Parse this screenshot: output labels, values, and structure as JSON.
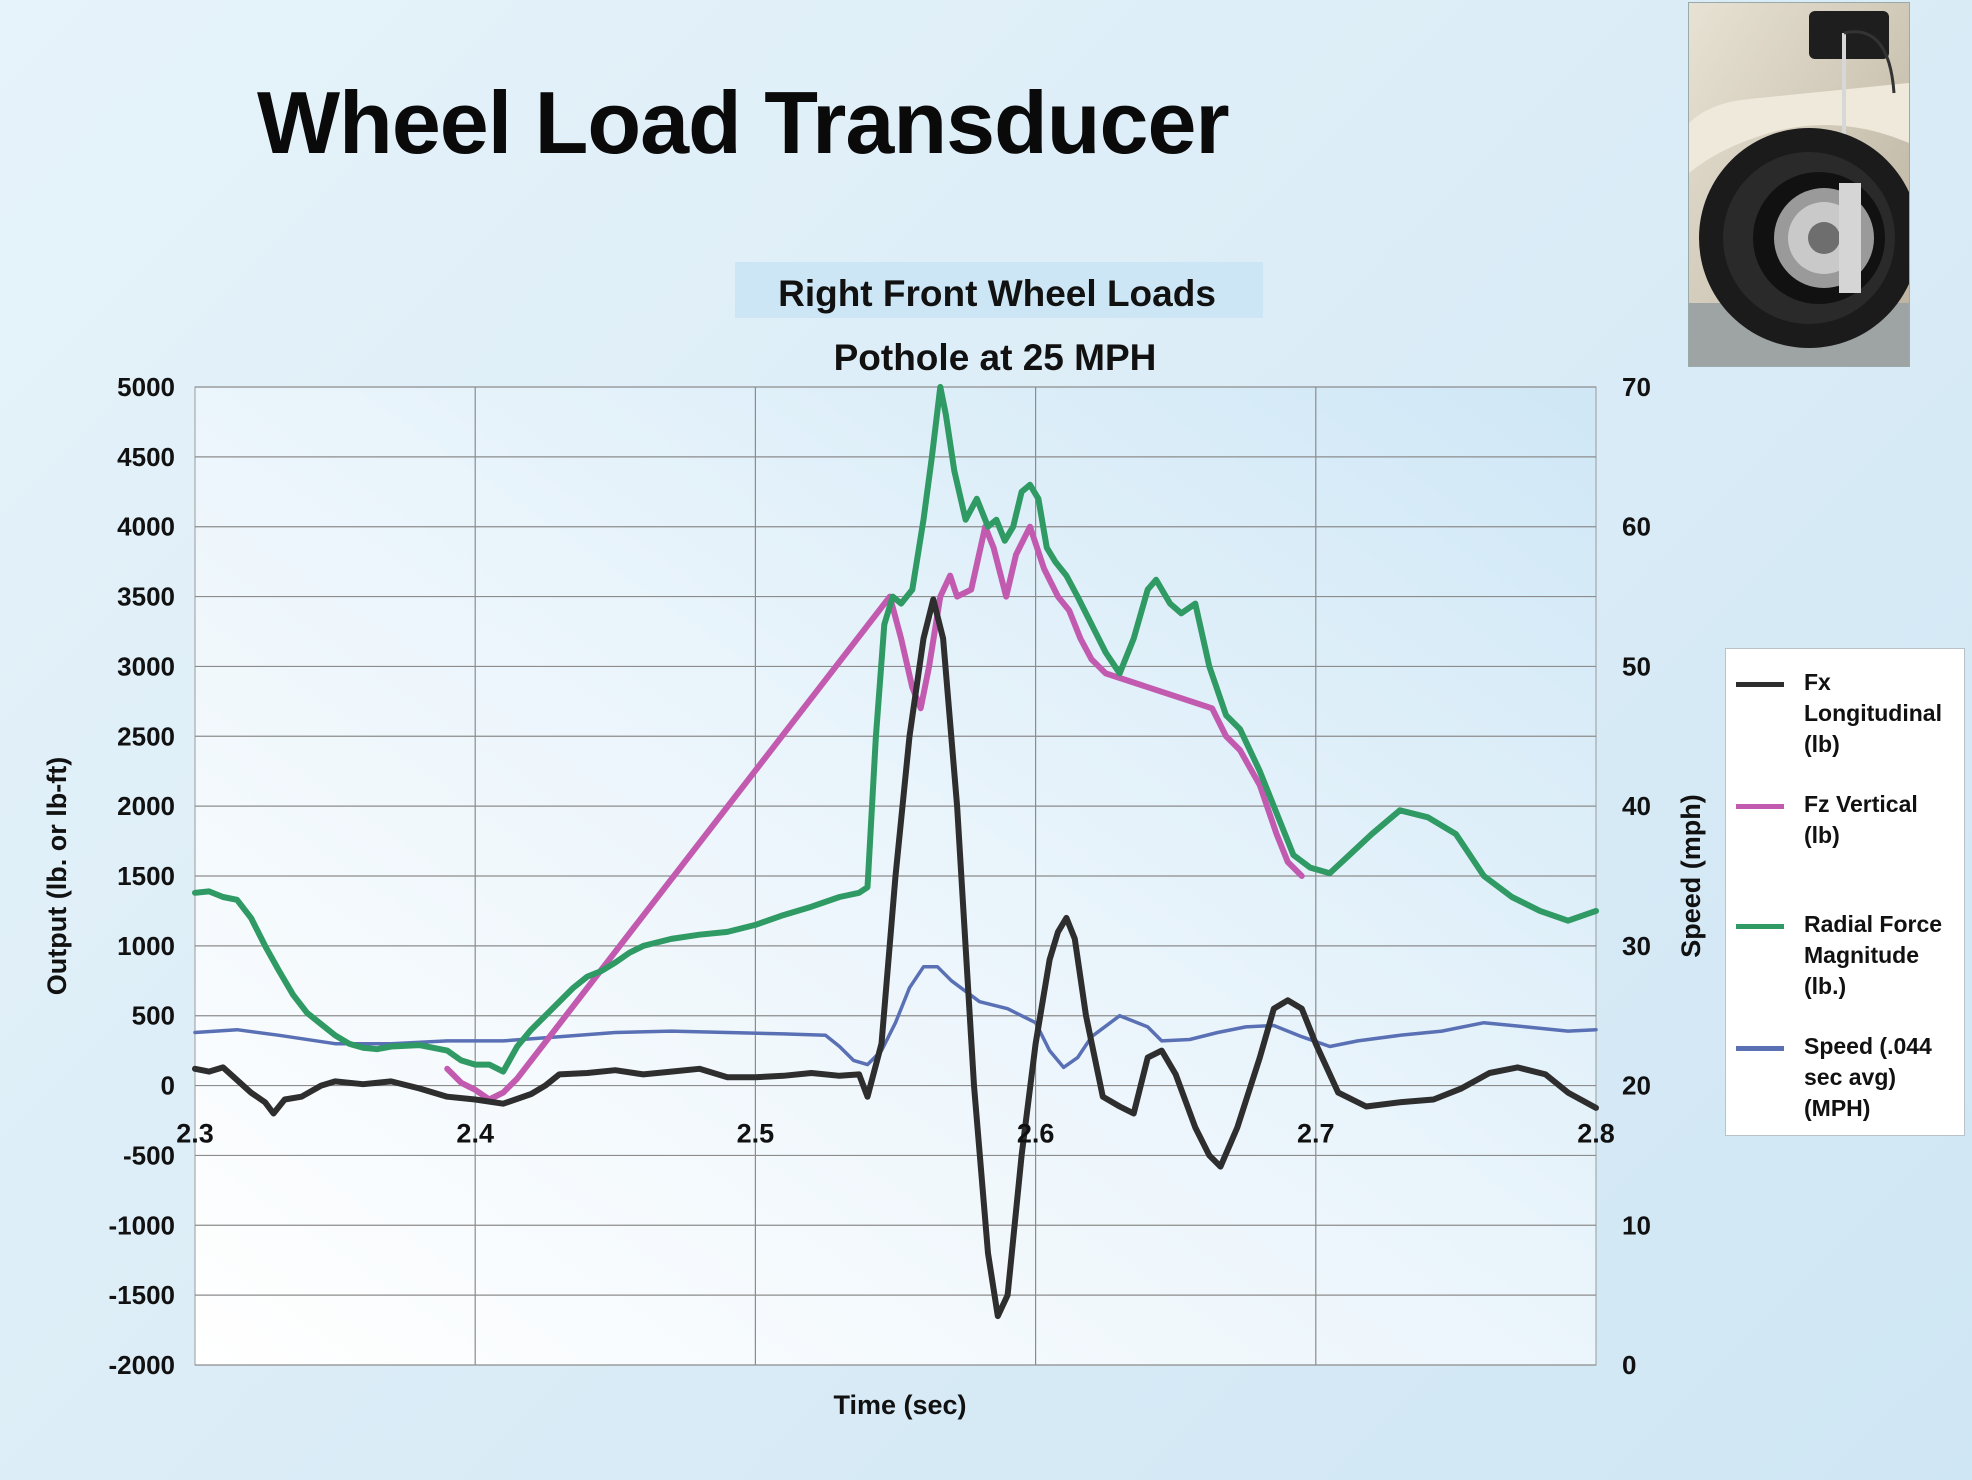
{
  "slide": {
    "title": "Wheel Load Transducer"
  },
  "colors": {
    "fx": "#2e2e2e",
    "fz": "#c25bb0",
    "radial": "#2f9a63",
    "speed": "#5a70b5",
    "grid": "#8c8c8c"
  },
  "chart_data": {
    "type": "line",
    "title": "Right Front Wheel Loads",
    "subtitle": "Pothole at 25 MPH",
    "xlabel": "Time (sec)",
    "ylabel": "Output (lb. or lb-ft)",
    "ylabel_right": "Speed (mph)",
    "xlim": [
      2.3,
      2.8
    ],
    "ylim": [
      -2000,
      5000
    ],
    "ylim_right": [
      0,
      70
    ],
    "x_ticks": [
      "2.3",
      "2.4",
      "2.5",
      "2.6",
      "2.7",
      "2.8"
    ],
    "y_ticks": [
      "5000",
      "4500",
      "4000",
      "3500",
      "3000",
      "2500",
      "2000",
      "1500",
      "1000",
      "500",
      "0",
      "-500",
      "-1000",
      "-1500",
      "-2000"
    ],
    "y_ticks_right": [
      "70",
      "60",
      "50",
      "40",
      "30",
      "20",
      "10",
      "0"
    ],
    "grid": true,
    "legend_position": "right",
    "series": [
      {
        "name": "Fx Longitudinal (lb)",
        "axis": "left",
        "points": [
          [
            2.3,
            120
          ],
          [
            2.305,
            100
          ],
          [
            2.31,
            130
          ],
          [
            2.315,
            40
          ],
          [
            2.32,
            -50
          ],
          [
            2.325,
            -120
          ],
          [
            2.328,
            -200
          ],
          [
            2.332,
            -100
          ],
          [
            2.338,
            -80
          ],
          [
            2.345,
            0
          ],
          [
            2.35,
            30
          ],
          [
            2.36,
            10
          ],
          [
            2.37,
            30
          ],
          [
            2.38,
            -20
          ],
          [
            2.39,
            -80
          ],
          [
            2.4,
            -100
          ],
          [
            2.41,
            -130
          ],
          [
            2.42,
            -60
          ],
          [
            2.425,
            0
          ],
          [
            2.43,
            80
          ],
          [
            2.44,
            90
          ],
          [
            2.45,
            110
          ],
          [
            2.46,
            80
          ],
          [
            2.47,
            100
          ],
          [
            2.48,
            120
          ],
          [
            2.49,
            60
          ],
          [
            2.5,
            60
          ],
          [
            2.51,
            70
          ],
          [
            2.52,
            90
          ],
          [
            2.53,
            70
          ],
          [
            2.537,
            80
          ],
          [
            2.54,
            -80
          ],
          [
            2.545,
            300
          ],
          [
            2.55,
            1500
          ],
          [
            2.555,
            2500
          ],
          [
            2.56,
            3200
          ],
          [
            2.5635,
            3480
          ],
          [
            2.567,
            3200
          ],
          [
            2.572,
            2000
          ],
          [
            2.578,
            0
          ],
          [
            2.583,
            -1200
          ],
          [
            2.5865,
            -1650
          ],
          [
            2.59,
            -1500
          ],
          [
            2.595,
            -500
          ],
          [
            2.6,
            300
          ],
          [
            2.605,
            900
          ],
          [
            2.608,
            1100
          ],
          [
            2.611,
            1200
          ],
          [
            2.614,
            1050
          ],
          [
            2.618,
            500
          ],
          [
            2.624,
            -80
          ],
          [
            2.63,
            -150
          ],
          [
            2.635,
            -200
          ],
          [
            2.64,
            200
          ],
          [
            2.645,
            250
          ],
          [
            2.65,
            80
          ],
          [
            2.657,
            -300
          ],
          [
            2.662,
            -500
          ],
          [
            2.666,
            -580
          ],
          [
            2.672,
            -300
          ],
          [
            2.68,
            200
          ],
          [
            2.685,
            550
          ],
          [
            2.69,
            610
          ],
          [
            2.695,
            550
          ],
          [
            2.7,
            300
          ],
          [
            2.708,
            -50
          ],
          [
            2.718,
            -150
          ],
          [
            2.73,
            -120
          ],
          [
            2.742,
            -100
          ],
          [
            2.752,
            -20
          ],
          [
            2.762,
            90
          ],
          [
            2.772,
            130
          ],
          [
            2.782,
            80
          ],
          [
            2.79,
            -50
          ],
          [
            2.8,
            -160
          ]
        ]
      },
      {
        "name": "Fz Vertical (lb)",
        "axis": "left",
        "points": [
          [
            2.39,
            120
          ],
          [
            2.395,
            20
          ],
          [
            2.4,
            -30
          ],
          [
            2.405,
            -100
          ],
          [
            2.41,
            -50
          ],
          [
            2.415,
            50
          ],
          [
            2.548,
            3500
          ],
          [
            2.552,
            3200
          ],
          [
            2.556,
            2850
          ],
          [
            2.559,
            2700
          ],
          [
            2.562,
            3000
          ],
          [
            2.566,
            3500
          ],
          [
            2.5695,
            3650
          ],
          [
            2.572,
            3500
          ],
          [
            2.577,
            3550
          ],
          [
            2.582,
            4000
          ],
          [
            2.585,
            3850
          ],
          [
            2.5895,
            3500
          ],
          [
            2.593,
            3800
          ],
          [
            2.598,
            4000
          ],
          [
            2.603,
            3700
          ],
          [
            2.608,
            3500
          ],
          [
            2.612,
            3400
          ],
          [
            2.616,
            3200
          ],
          [
            2.62,
            3050
          ],
          [
            2.625,
            2950
          ],
          [
            2.663,
            2700
          ],
          [
            2.668,
            2500
          ],
          [
            2.673,
            2400
          ],
          [
            2.68,
            2150
          ],
          [
            2.686,
            1800
          ],
          [
            2.69,
            1600
          ],
          [
            2.695,
            1500
          ]
        ]
      },
      {
        "name": "Radial Force Magnitude (lb.)",
        "axis": "left",
        "points": [
          [
            2.3,
            1380
          ],
          [
            2.305,
            1390
          ],
          [
            2.31,
            1350
          ],
          [
            2.315,
            1330
          ],
          [
            2.32,
            1200
          ],
          [
            2.325,
            1000
          ],
          [
            2.33,
            820
          ],
          [
            2.335,
            650
          ],
          [
            2.34,
            520
          ],
          [
            2.345,
            440
          ],
          [
            2.35,
            360
          ],
          [
            2.355,
            300
          ],
          [
            2.36,
            270
          ],
          [
            2.365,
            260
          ],
          [
            2.37,
            280
          ],
          [
            2.38,
            290
          ],
          [
            2.39,
            250
          ],
          [
            2.395,
            180
          ],
          [
            2.4,
            150
          ],
          [
            2.405,
            150
          ],
          [
            2.41,
            100
          ],
          [
            2.415,
            280
          ],
          [
            2.42,
            400
          ],
          [
            2.425,
            500
          ],
          [
            2.43,
            600
          ],
          [
            2.435,
            700
          ],
          [
            2.44,
            780
          ],
          [
            2.445,
            820
          ],
          [
            2.45,
            880
          ],
          [
            2.455,
            950
          ],
          [
            2.46,
            1000
          ],
          [
            2.47,
            1050
          ],
          [
            2.48,
            1080
          ],
          [
            2.49,
            1100
          ],
          [
            2.5,
            1150
          ],
          [
            2.51,
            1220
          ],
          [
            2.52,
            1280
          ],
          [
            2.53,
            1350
          ],
          [
            2.537,
            1380
          ],
          [
            2.54,
            1420
          ],
          [
            2.543,
            2500
          ],
          [
            2.546,
            3300
          ],
          [
            2.549,
            3500
          ],
          [
            2.552,
            3450
          ],
          [
            2.556,
            3550
          ],
          [
            2.56,
            4050
          ],
          [
            2.563,
            4500
          ],
          [
            2.566,
            5000
          ],
          [
            2.568,
            4800
          ],
          [
            2.571,
            4400
          ],
          [
            2.575,
            4050
          ],
          [
            2.579,
            4200
          ],
          [
            2.583,
            4000
          ],
          [
            2.586,
            4050
          ],
          [
            2.589,
            3900
          ],
          [
            2.592,
            4000
          ],
          [
            2.595,
            4250
          ],
          [
            2.598,
            4300
          ],
          [
            2.601,
            4200
          ],
          [
            2.604,
            3850
          ],
          [
            2.607,
            3750
          ],
          [
            2.611,
            3650
          ],
          [
            2.615,
            3500
          ],
          [
            2.62,
            3300
          ],
          [
            2.625,
            3100
          ],
          [
            2.63,
            2950
          ],
          [
            2.635,
            3200
          ],
          [
            2.64,
            3550
          ],
          [
            2.643,
            3620
          ],
          [
            2.648,
            3450
          ],
          [
            2.652,
            3380
          ],
          [
            2.657,
            3450
          ],
          [
            2.662,
            3000
          ],
          [
            2.668,
            2650
          ],
          [
            2.673,
            2550
          ],
          [
            2.68,
            2250
          ],
          [
            2.686,
            1950
          ],
          [
            2.692,
            1650
          ],
          [
            2.698,
            1560
          ],
          [
            2.705,
            1520
          ],
          [
            2.712,
            1650
          ],
          [
            2.72,
            1800
          ],
          [
            2.73,
            1970
          ],
          [
            2.74,
            1920
          ],
          [
            2.75,
            1800
          ],
          [
            2.755,
            1650
          ],
          [
            2.76,
            1500
          ],
          [
            2.77,
            1350
          ],
          [
            2.78,
            1250
          ],
          [
            2.79,
            1180
          ],
          [
            2.8,
            1250
          ]
        ]
      },
      {
        "name": "Speed (.044 sec avg) (MPH)",
        "axis": "right",
        "points": [
          [
            2.3,
            23.8
          ],
          [
            2.315,
            24
          ],
          [
            2.33,
            23.6
          ],
          [
            2.35,
            23
          ],
          [
            2.37,
            23
          ],
          [
            2.39,
            23.2
          ],
          [
            2.41,
            23.2
          ],
          [
            2.43,
            23.5
          ],
          [
            2.45,
            23.8
          ],
          [
            2.47,
            23.9
          ],
          [
            2.49,
            23.8
          ],
          [
            2.51,
            23.7
          ],
          [
            2.525,
            23.6
          ],
          [
            2.53,
            22.8
          ],
          [
            2.535,
            21.8
          ],
          [
            2.54,
            21.5
          ],
          [
            2.545,
            22.5
          ],
          [
            2.55,
            24.5
          ],
          [
            2.555,
            27
          ],
          [
            2.56,
            28.5
          ],
          [
            2.565,
            28.5
          ],
          [
            2.57,
            27.5
          ],
          [
            2.58,
            26
          ],
          [
            2.59,
            25.5
          ],
          [
            2.6,
            24.5
          ],
          [
            2.605,
            22.5
          ],
          [
            2.61,
            21.3
          ],
          [
            2.615,
            22
          ],
          [
            2.62,
            23.5
          ],
          [
            2.63,
            25
          ],
          [
            2.64,
            24.2
          ],
          [
            2.645,
            23.2
          ],
          [
            2.655,
            23.3
          ],
          [
            2.665,
            23.8
          ],
          [
            2.675,
            24.2
          ],
          [
            2.685,
            24.3
          ],
          [
            2.695,
            23.5
          ],
          [
            2.705,
            22.8
          ],
          [
            2.715,
            23.2
          ],
          [
            2.73,
            23.6
          ],
          [
            2.745,
            23.9
          ],
          [
            2.76,
            24.5
          ],
          [
            2.775,
            24.2
          ],
          [
            2.79,
            23.9
          ],
          [
            2.8,
            24
          ]
        ]
      }
    ]
  },
  "legend": {
    "items": [
      {
        "label": "Fx\nLongitudinal\n(lb)",
        "color_key": "fx"
      },
      {
        "label": "Fz Vertical\n(lb)",
        "color_key": "fz"
      },
      {
        "label": "Radial Force\nMagnitude\n(lb.)",
        "color_key": "radial"
      },
      {
        "label": "Speed (.044\nsec avg)\n(MPH)",
        "color_key": "speed"
      }
    ]
  },
  "photo": {
    "icon": "wheel-transducer-photo"
  }
}
